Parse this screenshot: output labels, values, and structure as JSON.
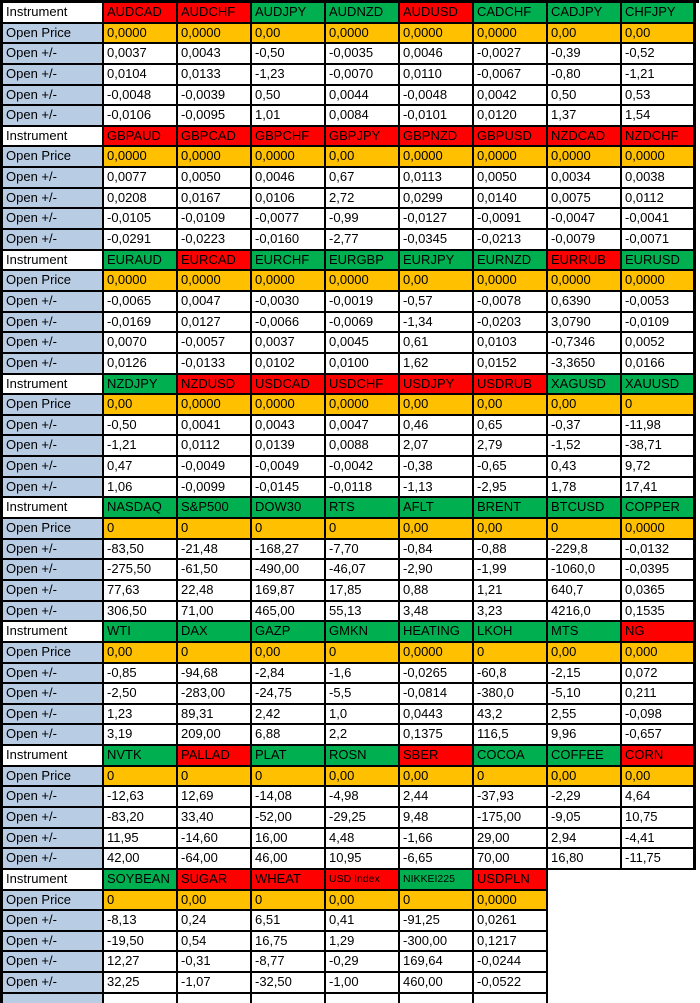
{
  "table": {
    "row_labels": {
      "instrument": "Instrument",
      "open_price": "Open Price",
      "open_delta": "Open +/-"
    },
    "colors": {
      "up": "#00B050",
      "down": "#FF0000",
      "open_price_bg": "#FFC000",
      "row_label_bg": "#B8CCE4",
      "grid": "#000000"
    },
    "blocks": [
      {
        "instruments": [
          {
            "name": "AUDCAD",
            "trend": "down"
          },
          {
            "name": "AUDCHF",
            "trend": "down"
          },
          {
            "name": "AUDJPY",
            "trend": "up"
          },
          {
            "name": "AUDNZD",
            "trend": "up"
          },
          {
            "name": "AUDUSD",
            "trend": "down"
          },
          {
            "name": "CADCHF",
            "trend": "up"
          },
          {
            "name": "CADJPY",
            "trend": "up"
          },
          {
            "name": "CHFJPY",
            "trend": "up"
          }
        ],
        "open_price": [
          "0,0000",
          "0,0000",
          "0,00",
          "0,0000",
          "0,0000",
          "0,0000",
          "0,00",
          "0,00"
        ],
        "deltas": [
          [
            "0,0037",
            "0,0043",
            "-0,50",
            "-0,0035",
            "0,0046",
            "-0,0027",
            "-0,39",
            "-0,52"
          ],
          [
            "0,0104",
            "0,0133",
            "-1,23",
            "-0,0070",
            "0,0110",
            "-0,0067",
            "-0,80",
            "-1,21"
          ],
          [
            "-0,0048",
            "-0,0039",
            "0,50",
            "0,0044",
            "-0,0048",
            "0,0042",
            "0,50",
            "0,53"
          ],
          [
            "-0,0106",
            "-0,0095",
            "1,01",
            "0,0084",
            "-0,0101",
            "0,0120",
            "1,37",
            "1,54"
          ]
        ]
      },
      {
        "instruments": [
          {
            "name": "GBPAUD",
            "trend": "down"
          },
          {
            "name": "GBPCAD",
            "trend": "down"
          },
          {
            "name": "GBPCHF",
            "trend": "down"
          },
          {
            "name": "GBPJPY",
            "trend": "down"
          },
          {
            "name": "GBPNZD",
            "trend": "down"
          },
          {
            "name": "GBPUSD",
            "trend": "down"
          },
          {
            "name": "NZDCAD",
            "trend": "down"
          },
          {
            "name": "NZDCHF",
            "trend": "down"
          }
        ],
        "open_price": [
          "0,0000",
          "0,0000",
          "0,0000",
          "0,00",
          "0,0000",
          "0,0000",
          "0,0000",
          "0,0000"
        ],
        "deltas": [
          [
            "0,0077",
            "0,0050",
            "0,0046",
            "0,67",
            "0,0113",
            "0,0050",
            "0,0034",
            "0,0038"
          ],
          [
            "0,0208",
            "0,0167",
            "0,0106",
            "2,72",
            "0,0299",
            "0,0140",
            "0,0075",
            "0,0112"
          ],
          [
            "-0,0105",
            "-0,0109",
            "-0,0077",
            "-0,99",
            "-0,0127",
            "-0,0091",
            "-0,0047",
            "-0,0041"
          ],
          [
            "-0,0291",
            "-0,0223",
            "-0,0160",
            "-2,77",
            "-0,0345",
            "-0,0213",
            "-0,0079",
            "-0,0071"
          ]
        ]
      },
      {
        "instruments": [
          {
            "name": "EURAUD",
            "trend": "up"
          },
          {
            "name": "EURCAD",
            "trend": "down"
          },
          {
            "name": "EURCHF",
            "trend": "up"
          },
          {
            "name": "EURGBP",
            "trend": "up"
          },
          {
            "name": "EURJPY",
            "trend": "up"
          },
          {
            "name": "EURNZD",
            "trend": "up"
          },
          {
            "name": "EURRUB",
            "trend": "down"
          },
          {
            "name": "EURUSD",
            "trend": "up"
          }
        ],
        "open_price": [
          "0,0000",
          "0,0000",
          "0,0000",
          "0,0000",
          "0,00",
          "0,0000",
          "0,0000",
          "0,0000"
        ],
        "deltas": [
          [
            "-0,0065",
            "0,0047",
            "-0,0030",
            "-0,0019",
            "-0,57",
            "-0,0078",
            "0,6390",
            "-0,0053"
          ],
          [
            "-0,0169",
            "0,0127",
            "-0,0066",
            "-0,0069",
            "-1,34",
            "-0,0203",
            "3,0790",
            "-0,0109"
          ],
          [
            "0,0070",
            "-0,0057",
            "0,0037",
            "0,0045",
            "0,61",
            "0,0103",
            "-0,7346",
            "0,0052"
          ],
          [
            "0,0126",
            "-0,0133",
            "0,0102",
            "0,0100",
            "1,62",
            "0,0152",
            "-3,3650",
            "0,0166"
          ]
        ]
      },
      {
        "instruments": [
          {
            "name": "NZDJPY",
            "trend": "up"
          },
          {
            "name": "NZDUSD",
            "trend": "down"
          },
          {
            "name": "USDCAD",
            "trend": "down"
          },
          {
            "name": "USDCHF",
            "trend": "down"
          },
          {
            "name": "USDJPY",
            "trend": "down"
          },
          {
            "name": "USDRUB",
            "trend": "down"
          },
          {
            "name": "XAGUSD",
            "trend": "up"
          },
          {
            "name": "XAUUSD",
            "trend": "up"
          }
        ],
        "open_price": [
          "0,00",
          "0,0000",
          "0,0000",
          "0,0000",
          "0,00",
          "0,00",
          "0,00",
          "0"
        ],
        "deltas": [
          [
            "-0,50",
            "0,0041",
            "0,0043",
            "0,0047",
            "0,46",
            "0,65",
            "-0,37",
            "-11,98"
          ],
          [
            "-1,21",
            "0,0112",
            "0,0139",
            "0,0088",
            "2,07",
            "2,79",
            "-1,52",
            "-38,71"
          ],
          [
            "0,47",
            "-0,0049",
            "-0,0049",
            "-0,0042",
            "-0,38",
            "-0,65",
            "0,43",
            "9,72"
          ],
          [
            "1,06",
            "-0,0099",
            "-0,0145",
            "-0,0118",
            "-1,13",
            "-2,95",
            "1,78",
            "17,41"
          ]
        ]
      },
      {
        "instruments": [
          {
            "name": "NASDAQ",
            "trend": "up"
          },
          {
            "name": "S&P500",
            "trend": "up"
          },
          {
            "name": "DOW30",
            "trend": "up"
          },
          {
            "name": "RTS",
            "trend": "up"
          },
          {
            "name": "AFLT",
            "trend": "up"
          },
          {
            "name": "BRENT",
            "trend": "up"
          },
          {
            "name": "BTCUSD",
            "trend": "up"
          },
          {
            "name": "COPPER",
            "trend": "up"
          }
        ],
        "open_price": [
          "0",
          "0",
          "0",
          "0",
          "0,00",
          "0,00",
          "0",
          "0,0000"
        ],
        "deltas": [
          [
            "-83,50",
            "-21,48",
            "-168,27",
            "-7,70",
            "-0,84",
            "-0,88",
            "-229,8",
            "-0,0132"
          ],
          [
            "-275,50",
            "-61,50",
            "-490,00",
            "-46,07",
            "-2,90",
            "-1,99",
            "-1060,0",
            "-0,0395"
          ],
          [
            "77,63",
            "22,48",
            "169,87",
            "17,85",
            "0,88",
            "1,21",
            "640,7",
            "0,0365"
          ],
          [
            "306,50",
            "71,00",
            "465,00",
            "55,13",
            "3,48",
            "3,23",
            "4216,0",
            "0,1535"
          ]
        ]
      },
      {
        "instruments": [
          {
            "name": "WTI",
            "trend": "up"
          },
          {
            "name": "DAX",
            "trend": "up"
          },
          {
            "name": "GAZP",
            "trend": "up"
          },
          {
            "name": "GMKN",
            "trend": "up"
          },
          {
            "name": "HEATING",
            "trend": "up"
          },
          {
            "name": "LKOH",
            "trend": "up"
          },
          {
            "name": "MTS",
            "trend": "up"
          },
          {
            "name": "NG",
            "trend": "down"
          }
        ],
        "open_price": [
          "0,00",
          "0",
          "0,00",
          "0",
          "0,0000",
          "0",
          "0,00",
          "0,000"
        ],
        "deltas": [
          [
            "-0,85",
            "-94,68",
            "-2,84",
            "-1,6",
            "-0,0265",
            "-60,8",
            "-2,15",
            "0,072"
          ],
          [
            "-2,50",
            "-283,00",
            "-24,75",
            "-5,5",
            "-0,0814",
            "-380,0",
            "-5,10",
            "0,211"
          ],
          [
            "1,23",
            "89,31",
            "2,42",
            "1,0",
            "0,0443",
            "43,2",
            "2,55",
            "-0,098"
          ],
          [
            "3,19",
            "209,00",
            "6,88",
            "2,2",
            "0,1375",
            "116,5",
            "9,96",
            "-0,657"
          ]
        ]
      },
      {
        "instruments": [
          {
            "name": "NVTK",
            "trend": "up"
          },
          {
            "name": "PALLAD",
            "trend": "down"
          },
          {
            "name": "PLAT",
            "trend": "up"
          },
          {
            "name": "ROSN",
            "trend": "up"
          },
          {
            "name": "SBER",
            "trend": "down"
          },
          {
            "name": "COCOA",
            "trend": "up"
          },
          {
            "name": "COFFEE",
            "trend": "up"
          },
          {
            "name": "CORN",
            "trend": "down"
          }
        ],
        "open_price": [
          "0",
          "0",
          "0",
          "0,00",
          "0,00",
          "0",
          "0,00",
          "0,00"
        ],
        "deltas": [
          [
            "-12,63",
            "12,69",
            "-14,08",
            "-4,98",
            "2,44",
            "-37,93",
            "-2,29",
            "4,64"
          ],
          [
            "-83,20",
            "33,40",
            "-52,00",
            "-29,25",
            "9,48",
            "-175,00",
            "-9,05",
            "10,75"
          ],
          [
            "11,95",
            "-14,60",
            "16,00",
            "4,48",
            "-1,66",
            "29,00",
            "2,94",
            "-4,41"
          ],
          [
            "42,00",
            "-64,00",
            "46,00",
            "10,95",
            "-6,65",
            "70,00",
            "16,80",
            "-11,75"
          ]
        ]
      },
      {
        "instruments": [
          {
            "name": "SOYBEAN",
            "trend": "up"
          },
          {
            "name": "SUGAR",
            "trend": "down"
          },
          {
            "name": "WHEAT",
            "trend": "down"
          },
          {
            "name": "USD Index",
            "trend": "down",
            "small": true
          },
          {
            "name": "NIKKEI225",
            "trend": "up",
            "small": true
          },
          {
            "name": "USDPLN",
            "trend": "down"
          }
        ],
        "open_price": [
          "0",
          "0,00",
          "0",
          "0,00",
          "0",
          "0,0000"
        ],
        "deltas": [
          [
            "-8,13",
            "0,24",
            "6,51",
            "0,41",
            "-91,25",
            "0,0261"
          ],
          [
            "-19,50",
            "0,54",
            "16,75",
            "1,29",
            "-300,00",
            "0,1217"
          ],
          [
            "12,27",
            "-0,31",
            "-8,77",
            "-0,29",
            "169,64",
            "-0,0244"
          ],
          [
            "32,25",
            "-1,07",
            "-32,50",
            "-1,00",
            "460,00",
            "-0,0522"
          ]
        ]
      }
    ],
    "partial_bottom_row": {
      "columns": 6
    }
  }
}
